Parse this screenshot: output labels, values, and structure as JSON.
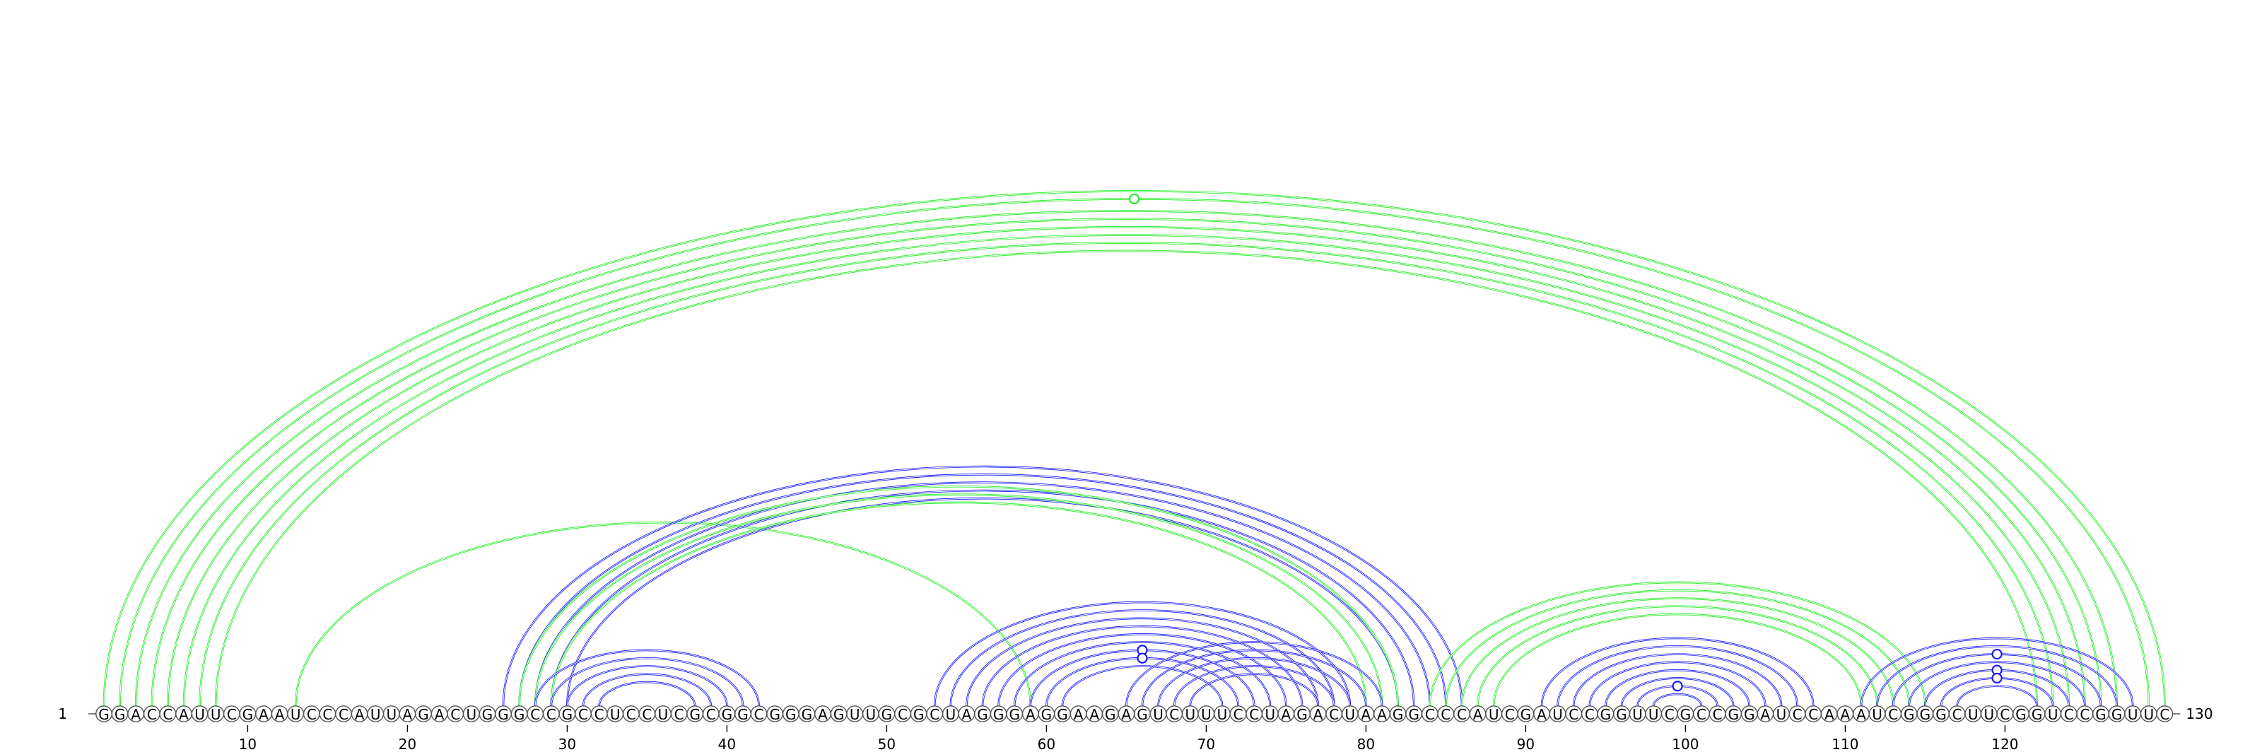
{
  "sequence": "GGACCAUUCGAAUCCCAUUAGACUGGGCCGCCUCCUCGCGGCGGGAGUUGCGCUAGGGAGGAAGAGUCUUUCCUAGACUAAGGCCCAUCGAUCCGGUUCGCCGGAUCCAAAUCGGGCUUCGGUCCGGUUC",
  "start_label": "1",
  "end_label": "130",
  "tick_labels": [
    "10",
    "20",
    "30",
    "40",
    "50",
    "60",
    "70",
    "80",
    "90",
    "100",
    "110",
    "120"
  ],
  "tick_positions": [
    10,
    20,
    30,
    40,
    50,
    60,
    70,
    80,
    90,
    100,
    110,
    120
  ],
  "colors": {
    "blue": "#1a1aff",
    "green": "#22ee22"
  },
  "helices": [
    {
      "color": "green",
      "pairs": [
        [
          1,
          130
        ],
        [
          2,
          129
        ],
        [
          3,
          127
        ],
        [
          4,
          126
        ],
        [
          5,
          125
        ],
        [
          6,
          124
        ],
        [
          7,
          123
        ],
        [
          8,
          122
        ]
      ]
    },
    {
      "color": "green",
      "pairs": [
        [
          13,
          59
        ]
      ]
    },
    {
      "color": "blue",
      "pairs": [
        [
          26,
          86
        ],
        [
          27,
          85
        ],
        [
          28,
          84
        ],
        [
          29,
          83
        ],
        [
          30,
          82
        ]
      ]
    },
    {
      "color": "green",
      "pairs": [
        [
          27,
          82
        ],
        [
          28,
          81
        ],
        [
          29,
          80
        ]
      ]
    },
    {
      "color": "blue",
      "pairs": [
        [
          28,
          42
        ],
        [
          29,
          41
        ],
        [
          30,
          40
        ],
        [
          31,
          39
        ],
        [
          32,
          38
        ]
      ]
    },
    {
      "color": "blue",
      "pairs": [
        [
          53,
          79
        ],
        [
          54,
          78
        ],
        [
          55,
          77
        ],
        [
          56,
          76
        ],
        [
          57,
          75
        ],
        [
          58,
          74
        ],
        [
          59,
          73
        ],
        [
          60,
          72
        ],
        [
          61,
          71
        ]
      ]
    },
    {
      "color": "blue",
      "pairs": [
        [
          65,
          81
        ],
        [
          66,
          80
        ],
        [
          67,
          79
        ],
        [
          68,
          78
        ],
        [
          69,
          77
        ]
      ]
    },
    {
      "color": "green",
      "pairs": [
        [
          84,
          115
        ],
        [
          85,
          114
        ],
        [
          86,
          113
        ],
        [
          87,
          112
        ],
        [
          88,
          111
        ]
      ]
    },
    {
      "color": "blue",
      "pairs": [
        [
          91,
          108
        ],
        [
          92,
          107
        ],
        [
          93,
          106
        ],
        [
          94,
          105
        ],
        [
          95,
          104
        ],
        [
          96,
          103
        ],
        [
          97,
          102
        ],
        [
          98,
          101
        ]
      ]
    },
    {
      "color": "blue",
      "pairs": [
        [
          111,
          128
        ],
        [
          112,
          127
        ],
        [
          113,
          126
        ],
        [
          114,
          125
        ],
        [
          115,
          124
        ],
        [
          116,
          123
        ],
        [
          117,
          122
        ]
      ]
    }
  ],
  "markers": [
    {
      "color": "green",
      "pair": [
        2,
        129
      ]
    },
    {
      "color": "blue",
      "pair": [
        59,
        73
      ]
    },
    {
      "color": "blue",
      "pair": [
        60,
        72
      ]
    },
    {
      "color": "blue",
      "pair": [
        97,
        102
      ]
    },
    {
      "color": "blue",
      "pair": [
        113,
        126
      ]
    },
    {
      "color": "blue",
      "pair": [
        115,
        124
      ]
    },
    {
      "color": "blue",
      "pair": [
        116,
        123
      ]
    }
  ]
}
